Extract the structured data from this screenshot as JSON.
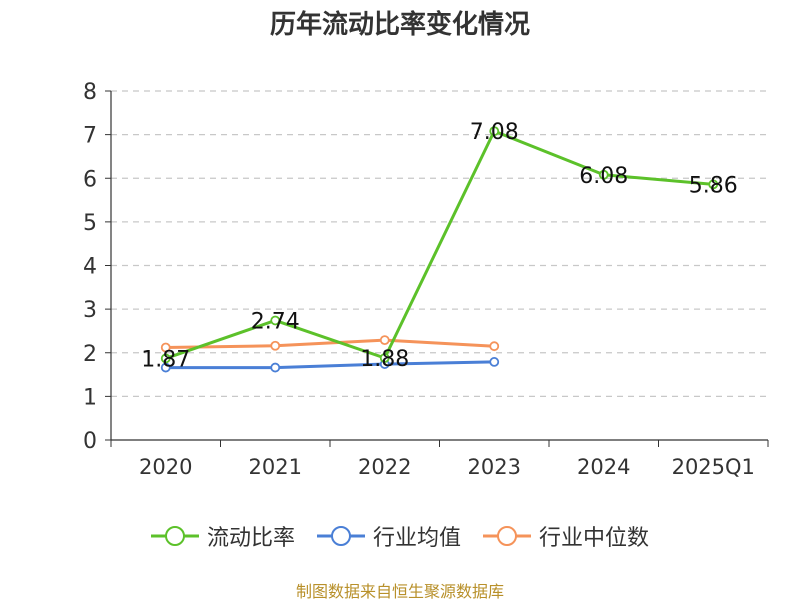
{
  "chart_data": {
    "type": "line",
    "title": "历年流动比率变化情况",
    "categories": [
      "2020",
      "2021",
      "2022",
      "2023",
      "2024",
      "2025Q1"
    ],
    "ylim": [
      0,
      8
    ],
    "yticks": [
      "0",
      "1",
      "2",
      "3",
      "4",
      "5",
      "6",
      "7",
      "8"
    ],
    "grid": true,
    "legend_position": "bottom",
    "series": [
      {
        "name": "流动比率",
        "color": "#5cc12a",
        "values": [
          1.87,
          2.74,
          1.88,
          7.08,
          6.08,
          5.86
        ],
        "labels": [
          "1.87",
          "2.74",
          "1.88",
          "7.08",
          "6.08",
          "5.86"
        ]
      },
      {
        "name": "行业均值",
        "color": "#4a7fd6",
        "values": [
          1.66,
          1.66,
          1.74,
          1.79,
          null,
          null
        ]
      },
      {
        "name": "行业中位数",
        "color": "#f5935a",
        "values": [
          2.12,
          2.16,
          2.29,
          2.15,
          null,
          null
        ]
      }
    ]
  },
  "source": "制图数据来自恒生聚源数据库"
}
